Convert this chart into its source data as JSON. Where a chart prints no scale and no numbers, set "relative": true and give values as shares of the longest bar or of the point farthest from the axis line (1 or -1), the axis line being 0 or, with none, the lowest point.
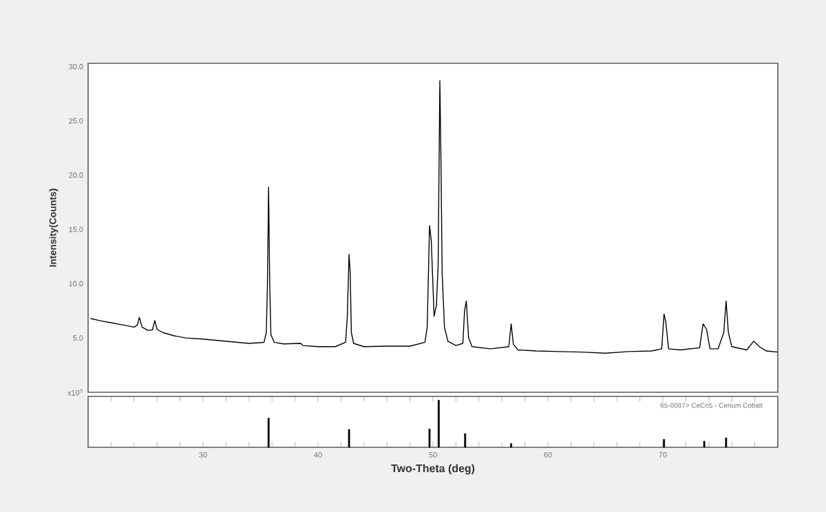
{
  "chart_data": [
    {
      "type": "line",
      "ylabel": "Intensity(Counts)",
      "tick_labels": "y",
      "xlim": [
        20,
        80
      ],
      "ylim": [
        0,
        30.3
      ],
      "yticks": [
        {
          "value": 0,
          "label": "x10$^{3}$"
        },
        {
          "value": 5,
          "label": "5.0"
        },
        {
          "value": 10,
          "label": "10.0"
        },
        {
          "value": 15,
          "label": "15.0"
        },
        {
          "value": 20,
          "label": "20.0"
        },
        {
          "value": 25,
          "label": "25.0"
        },
        {
          "value": 30,
          "label": "30.0"
        }
      ],
      "series": [
        {
          "color": "#000000",
          "x": [
            20.2,
            21,
            22,
            23,
            24,
            24.3,
            24.45,
            24.7,
            25.2,
            25.6,
            25.8,
            26.0,
            26.5,
            27.5,
            28.5,
            30,
            32,
            34,
            35.3,
            35.5,
            35.6,
            35.7,
            35.8,
            35.9,
            36.2,
            37,
            38.5,
            38.7,
            40,
            41.5,
            42.4,
            42.55,
            42.7,
            42.8,
            42.9,
            43.1,
            44,
            46,
            48,
            49.3,
            49.5,
            49.7,
            49.85,
            50.1,
            50.3,
            50.45,
            50.6,
            50.7,
            50.8,
            51.0,
            51.3,
            52,
            52.6,
            52.75,
            52.9,
            53.1,
            53.4,
            55,
            56.6,
            56.8,
            57.0,
            57.4,
            59,
            61,
            63,
            65,
            67,
            69,
            69.9,
            70.1,
            70.25,
            70.5,
            71.5,
            73.2,
            73.5,
            73.8,
            74.1,
            74.8,
            75.3,
            75.5,
            75.7,
            76.0,
            77.3,
            77.9,
            78.4,
            79,
            80
          ],
          "values": [
            6.8,
            6.6,
            6.4,
            6.2,
            6.0,
            6.2,
            6.9,
            6.0,
            5.7,
            5.75,
            6.6,
            5.8,
            5.5,
            5.2,
            5.0,
            4.9,
            4.7,
            4.5,
            4.6,
            5.5,
            9.8,
            18.9,
            10,
            5.3,
            4.6,
            4.45,
            4.5,
            4.3,
            4.2,
            4.2,
            4.6,
            7,
            12.7,
            11,
            5.5,
            4.5,
            4.2,
            4.25,
            4.25,
            4.6,
            6,
            15.35,
            14,
            7.0,
            8,
            11.7,
            28.7,
            21,
            11,
            6,
            4.7,
            4.3,
            4.5,
            7.5,
            8.4,
            5,
            4.2,
            4.0,
            4.2,
            6.3,
            4.4,
            3.9,
            3.8,
            3.75,
            3.7,
            3.6,
            3.75,
            3.8,
            4.0,
            7.2,
            6.5,
            4.0,
            3.9,
            4.1,
            6.3,
            5.8,
            4.0,
            4.0,
            5.5,
            8.4,
            5.5,
            4.2,
            3.9,
            4.7,
            4.2,
            3.8,
            3.7
          ]
        }
      ]
    },
    {
      "type": "bar",
      "relative": true,
      "xlabel": "Two-Theta (deg)",
      "tick_labels": "x",
      "xlim": [
        20,
        80
      ],
      "xticks": [
        {
          "value": 22,
          "label": null
        },
        {
          "value": 24,
          "label": null
        },
        {
          "value": 26,
          "label": null
        },
        {
          "value": 28,
          "label": null
        },
        30,
        {
          "value": 32,
          "label": null
        },
        {
          "value": 34,
          "label": null
        },
        {
          "value": 36,
          "label": null
        },
        {
          "value": 38,
          "label": null
        },
        40,
        {
          "value": 42,
          "label": null
        },
        {
          "value": 44,
          "label": null
        },
        {
          "value": 46,
          "label": null
        },
        {
          "value": 48,
          "label": null
        },
        50,
        {
          "value": 52,
          "label": null
        },
        {
          "value": 54,
          "label": null
        },
        {
          "value": 56,
          "label": null
        },
        {
          "value": 58,
          "label": null
        },
        60,
        {
          "value": 62,
          "label": null
        },
        {
          "value": 64,
          "label": null
        },
        {
          "value": 66,
          "label": null
        },
        {
          "value": 68,
          "label": null
        },
        70,
        {
          "value": 72,
          "label": null
        },
        {
          "value": 74,
          "label": null
        },
        {
          "value": 76,
          "label": null
        },
        {
          "value": 78,
          "label": null
        }
      ],
      "annotations": [
        "65-0087> CeCo5 - Cerium Cobalt"
      ],
      "series": [
        {
          "color": "#000000",
          "x": [
            35.7,
            42.7,
            49.7,
            50.5,
            52.8,
            56.8,
            70.1,
            73.6,
            75.5
          ],
          "values": [
            0.62,
            0.38,
            0.39,
            1,
            0.29,
            0.08,
            0.17,
            0.13,
            0.2
          ]
        }
      ]
    }
  ]
}
